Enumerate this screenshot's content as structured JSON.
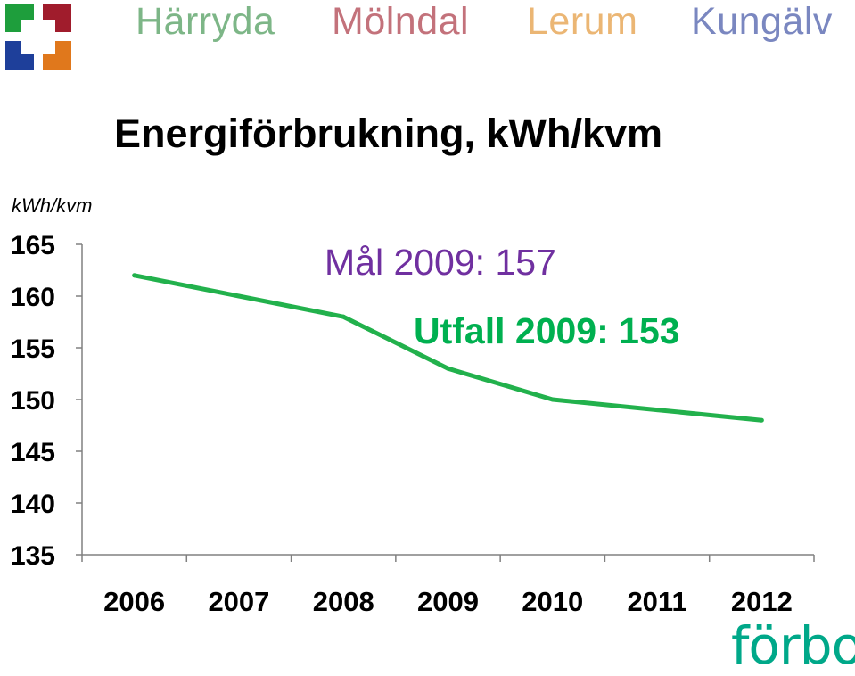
{
  "header": {
    "municipalities": [
      {
        "name": "Härryda",
        "color": "#2e8b3f"
      },
      {
        "name": "Mölndal",
        "color": "#a01c2c"
      },
      {
        "name": "Lerum",
        "color": "#e08a20"
      },
      {
        "name": "Kungälv",
        "color": "#2a3e9a"
      }
    ],
    "logo_colors": [
      "#1e9e3c",
      "#a01c2c",
      "#1e3f9a",
      "#e0781c"
    ]
  },
  "brand": "förbo",
  "chart_data": {
    "type": "line",
    "title": "Energiförbrukning, kWh/kvm",
    "ylabel": "kWh/kvm",
    "xlabel": "",
    "categories": [
      "2006",
      "2007",
      "2008",
      "2009",
      "2010",
      "2011",
      "2012"
    ],
    "series": [
      {
        "values": [
          162,
          160,
          158,
          153,
          150,
          149,
          148
        ],
        "color": "#22b14c"
      }
    ],
    "ylim": [
      135,
      165
    ],
    "yticks": [
      165,
      160,
      155,
      150,
      145,
      140,
      135
    ],
    "grid": false,
    "annotations": [
      {
        "text": "Mål 2009: 157",
        "color": "#7030a0"
      },
      {
        "text": "Utfall 2009: 153",
        "color": "#00b050"
      }
    ]
  }
}
